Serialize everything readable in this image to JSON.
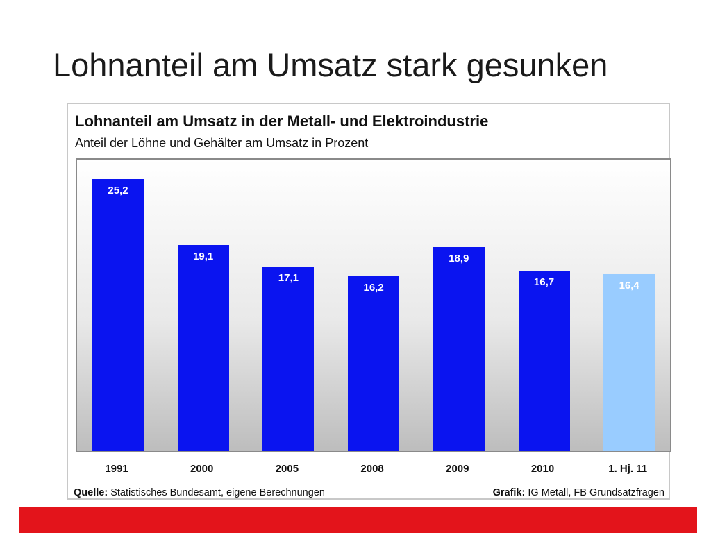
{
  "slide": {
    "title": "Lohnanteil am Umsatz stark gesunken"
  },
  "chart_data": {
    "type": "bar",
    "title": "Lohnanteil am Umsatz in der Metall- und Elektroindustrie",
    "subtitle": "Anteil der Löhne und Gehälter am Umsatz in Prozent",
    "categories": [
      "1991",
      "2000",
      "2005",
      "2008",
      "2009",
      "2010",
      "1. Hj. 11"
    ],
    "values": [
      25.2,
      19.1,
      17.1,
      16.2,
      18.9,
      16.7,
      16.4
    ],
    "value_labels": [
      "25,2",
      "19,1",
      "17,1",
      "16,2",
      "18,9",
      "16,7",
      "16,4"
    ],
    "colors": [
      "#0a14f0",
      "#0a14f0",
      "#0a14f0",
      "#0a14f0",
      "#0a14f0",
      "#0a14f0",
      "#99ccff"
    ],
    "ylim": [
      0,
      27
    ],
    "grid": false,
    "source_label": "Quelle:",
    "source_text": "Statistisches Bundesamt, eigene Berechnungen",
    "credit_label": "Grafik:",
    "credit_text": "IG Metall, FB Grundsatzfragen"
  },
  "colors": {
    "footer_band": "#e3141b",
    "bar_primary": "#0a14f0",
    "bar_highlight": "#99ccff"
  }
}
